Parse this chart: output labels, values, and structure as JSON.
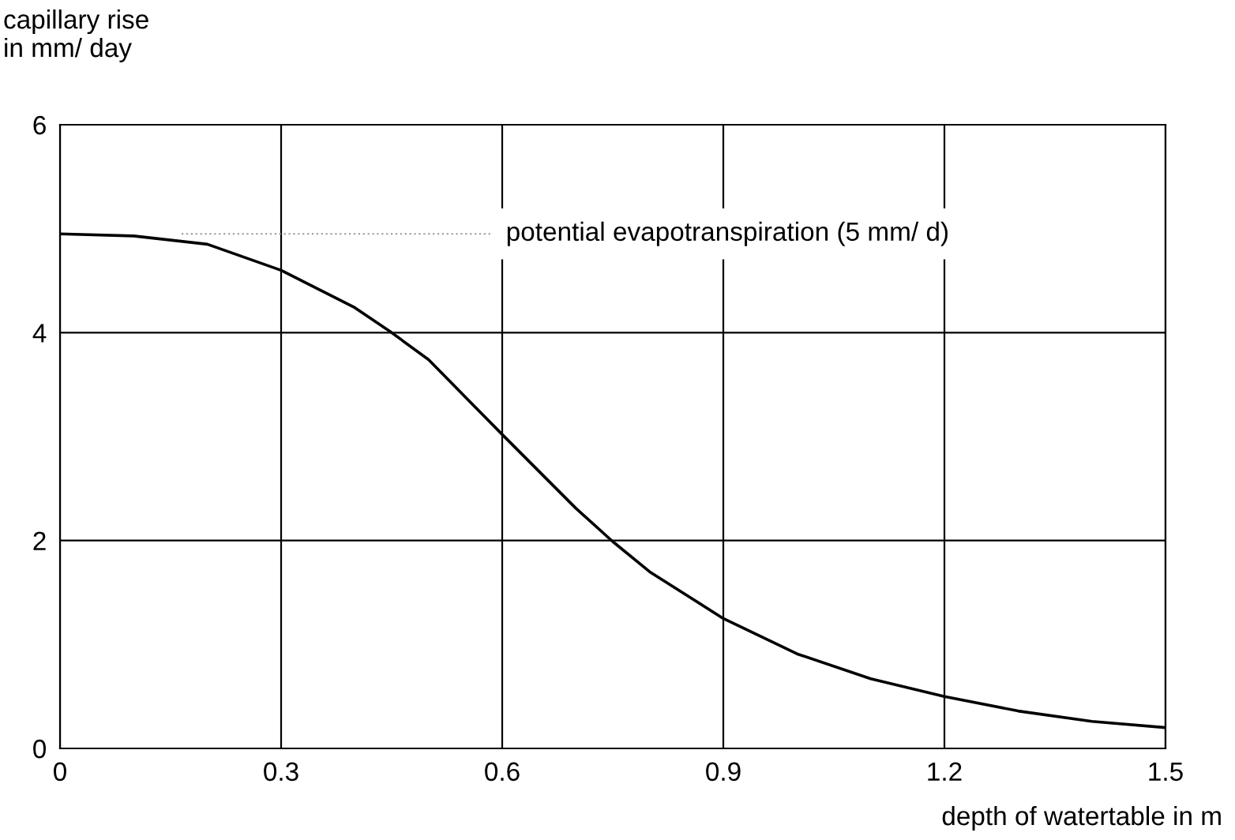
{
  "chart_data": {
    "type": "line",
    "xlabel": "depth of watertable in m",
    "ylabel": "capillary rise\nin mm/ day",
    "x": [
      0,
      0.1,
      0.2,
      0.3,
      0.4,
      0.45,
      0.5,
      0.6,
      0.7,
      0.75,
      0.8,
      0.9,
      1.0,
      1.1,
      1.2,
      1.3,
      1.4,
      1.5
    ],
    "series": [
      {
        "color": "#000000",
        "values": [
          4.95,
          4.93,
          4.85,
          4.6,
          4.24,
          4.0,
          3.74,
          3.02,
          2.31,
          1.99,
          1.7,
          1.25,
          0.91,
          0.67,
          0.5,
          0.36,
          0.26,
          0.2
        ]
      }
    ],
    "xlim": [
      0,
      1.5
    ],
    "ylim": [
      0,
      6
    ],
    "xticks": [
      0,
      0.3,
      0.6,
      0.9,
      1.2,
      1.5
    ],
    "yticks": [
      0,
      2,
      4,
      6
    ],
    "grid": true,
    "line_style": "solid",
    "ref_lines": [
      {
        "axis": "y",
        "value": 4.95,
        "label": "potential evapotranspiration (5 mm/ d)",
        "color": "#999999",
        "line_style": "dotted"
      }
    ]
  }
}
